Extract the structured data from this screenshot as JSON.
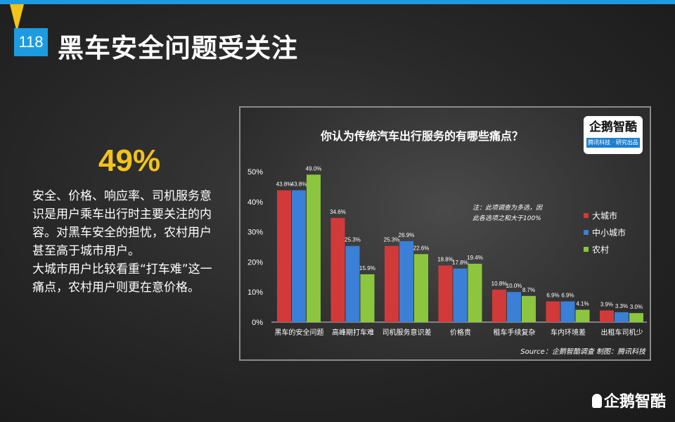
{
  "header": {
    "page_number": "118",
    "title": "黑车安全问题受关注"
  },
  "highlight": {
    "value": "49%"
  },
  "description": {
    "paragraph1": "安全、价格、响应率、司机服务意识是用户乘车出行时主要关注的内容。对黑车安全的担忧，农村用户甚至高于城市用户。",
    "paragraph2": "大城市用户比较看重“打车难”这一痛点，农村用户则更在意价格。"
  },
  "logo": {
    "text": "企鹅智酷",
    "subtext": "腾讯科技 · 研究出品"
  },
  "footer": {
    "logo_text": "企鹅智酷"
  },
  "colors": {
    "accent_blue": "#1e9be0",
    "accent_yellow": "#f2c318",
    "big_city": "#d23a3a",
    "small_city": "#3b7fd6",
    "rural": "#8cc63e"
  },
  "chart_data": {
    "type": "bar",
    "title": "你认为传统汽车出行服务的有哪些痛点？",
    "categories": [
      "黑车的安全问题",
      "高峰期打车难",
      "司机服务意识差",
      "价格贵",
      "租车手续复杂",
      "车内环境差",
      "出租车司机少"
    ],
    "series": [
      {
        "name": "大城市",
        "color": "#d23a3a",
        "values": [
          43.8,
          34.6,
          25.3,
          18.8,
          10.8,
          6.9,
          3.9
        ]
      },
      {
        "name": "中小城市",
        "color": "#3b7fd6",
        "values": [
          43.8,
          25.3,
          26.9,
          17.8,
          10.0,
          6.9,
          3.3
        ]
      },
      {
        "name": "农村",
        "color": "#8cc63e",
        "values": [
          49.0,
          15.9,
          22.6,
          19.4,
          8.7,
          4.1,
          3.0
        ]
      }
    ],
    "data_labels": [
      [
        "43.8%",
        "34.6%",
        "25.3%",
        "18.8%",
        "10.8%",
        "6.9%",
        "3.9%"
      ],
      [
        "43.8%",
        "25.3%",
        "26.9%",
        "17.8%",
        "10.0%",
        "6.9%",
        "3.3%"
      ],
      [
        "49.0%",
        "15.9%",
        "22.6%",
        "19.4%",
        "8.7%",
        "4.1%",
        "3.0%"
      ]
    ],
    "y_ticks": [
      "0%",
      "10%",
      "20%",
      "30%",
      "40%",
      "50%"
    ],
    "ylim": [
      0,
      50
    ],
    "grid": false,
    "legend_position": "right",
    "note": "注：此项调查为多选，因此各选项之和大于100%",
    "source": "Source：企鹅智酷调查  制图：腾讯科技"
  }
}
